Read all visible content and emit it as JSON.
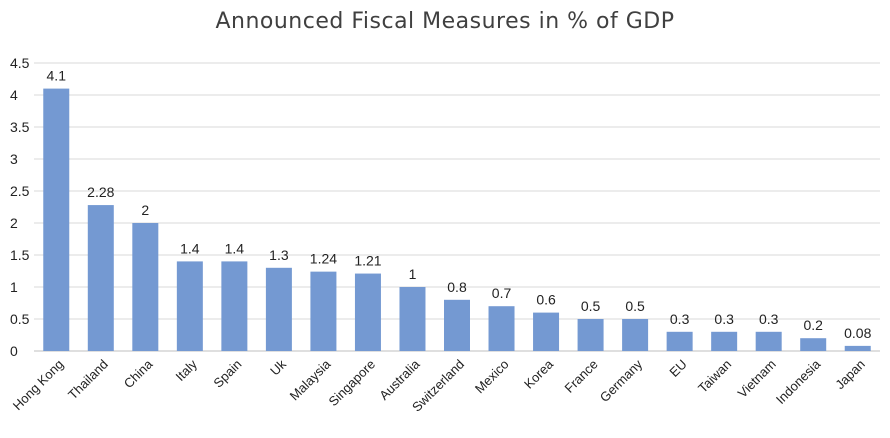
{
  "chart_data": {
    "type": "bar",
    "title": "Announced Fiscal Measures in % of GDP",
    "xlabel": "",
    "ylabel": "",
    "categories": [
      "Hong Kong",
      "Thailand",
      "China",
      "Italy",
      "Spain",
      "Uk",
      "Malaysia",
      "Singapore",
      "Australia",
      "Switzerland",
      "Mexico",
      "Korea",
      "France",
      "Germany",
      "EU",
      "Taiwan",
      "Vietnam",
      "Indonesia",
      "Japan"
    ],
    "values": [
      4.1,
      2.28,
      2,
      1.4,
      1.4,
      1.3,
      1.24,
      1.21,
      1,
      0.8,
      0.7,
      0.6,
      0.5,
      0.5,
      0.3,
      0.3,
      0.3,
      0.2,
      0.08
    ],
    "data_labels": [
      "4.1",
      "2.28",
      "2",
      "1.4",
      "1.4",
      "1.3",
      "1.24",
      "1.21",
      "1",
      "0.8",
      "0.7",
      "0.6",
      "0.5",
      "0.5",
      "0.3",
      "0.3",
      "0.3",
      "0.2",
      "0.08"
    ],
    "ylim": [
      0,
      4.5
    ],
    "yticks": [
      "0",
      "0.5",
      "1",
      "1.5",
      "2",
      "2.5",
      "3",
      "3.5",
      "4",
      "4.5"
    ],
    "grid": true,
    "legend": "none",
    "colors": {
      "bar": "#7499d2",
      "grid": "#d9d9d9",
      "axis": "#bfbfbf"
    }
  }
}
